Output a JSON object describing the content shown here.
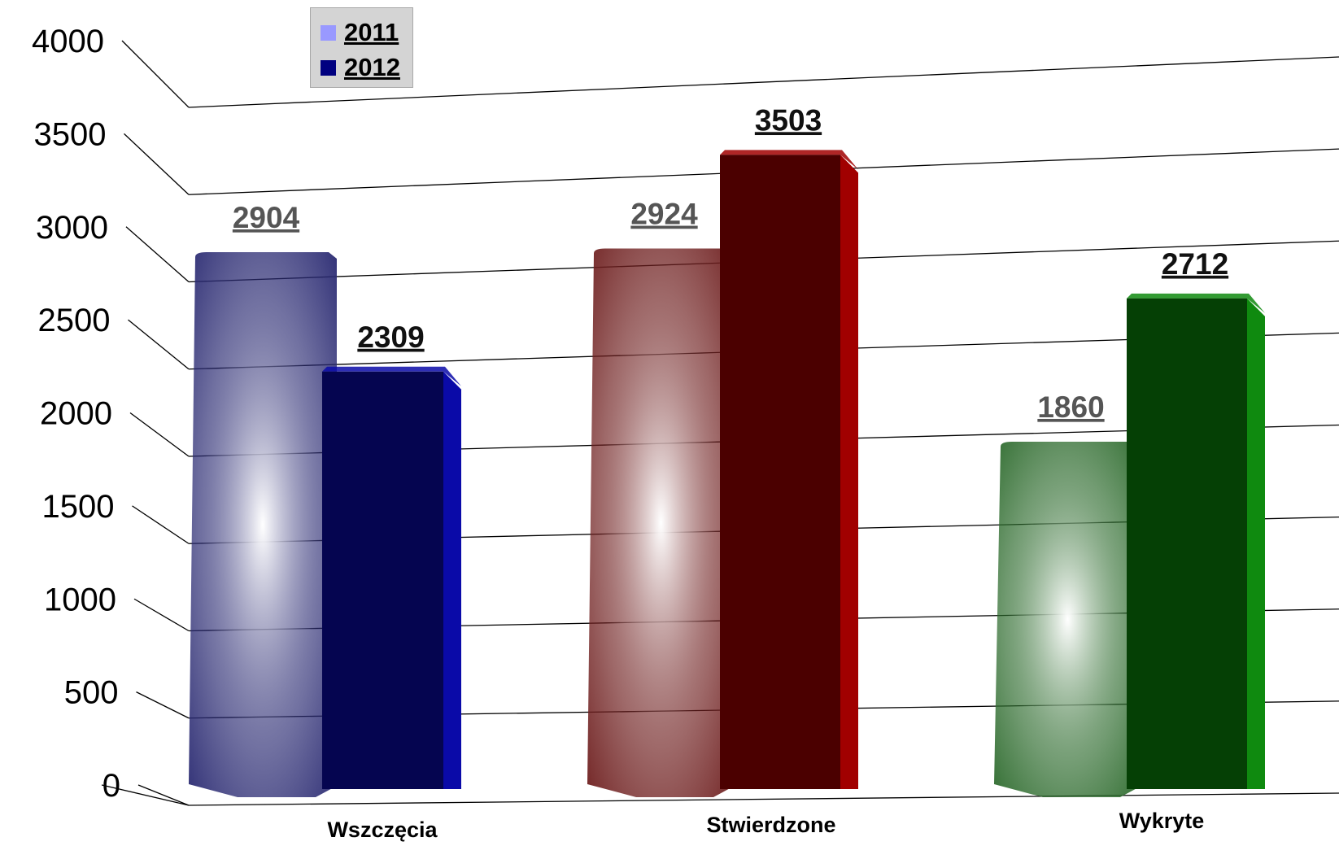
{
  "chart_data": {
    "type": "bar",
    "title": "",
    "xlabel": "",
    "ylabel": "",
    "categories": [
      "Wszczęcia",
      "Stwierdzone",
      "Wykryte"
    ],
    "series": [
      {
        "name": "2011",
        "values": [
          2904,
          2924,
          1860
        ]
      },
      {
        "name": "2012",
        "values": [
          2309,
          3503,
          2712
        ]
      }
    ],
    "data_labels": [
      [
        "2904",
        "2309"
      ],
      [
        "2924",
        "3503"
      ],
      [
        "1860",
        "2712"
      ]
    ],
    "ylim": [
      0,
      4000
    ],
    "yticks": [
      "0",
      "500",
      "1000",
      "1500",
      "2000",
      "2500",
      "3000",
      "3500",
      "4000"
    ],
    "grid": true,
    "legend_position": "top-left",
    "style": "3d-columns",
    "legend_colors": {
      "2011": "#9999ff",
      "2012": "#000080"
    },
    "category_colors": [
      {
        "front_2011": "#2a2a72",
        "front_2012": "#050550",
        "side_2012": "#0a0aa8"
      },
      {
        "front_2011": "#6e1e1e",
        "front_2012": "#4b0000",
        "side_2012": "#a10000"
      },
      {
        "front_2011": "#2c6a2c",
        "front_2012": "#054005",
        "side_2012": "#0f8a0f"
      }
    ],
    "data_label_colors": {
      "2011": "#555555",
      "2012": "#111111"
    }
  }
}
